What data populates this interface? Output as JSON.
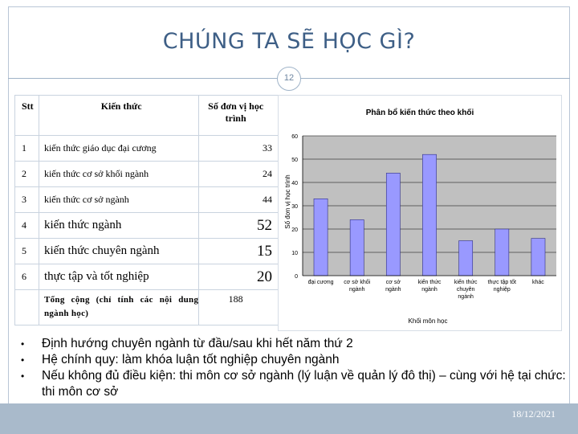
{
  "slide": {
    "title": "CHÚNG TA SẼ HỌC GÌ?",
    "number": "12",
    "date": "18/12/2021"
  },
  "table": {
    "headers": [
      "Stt",
      "Kiến thức",
      "Số đơn vị học trình"
    ],
    "rows": [
      {
        "stt": "1",
        "name": "kiến thức giáo dục đại cương",
        "units": "33"
      },
      {
        "stt": "2",
        "name": "kiến thức cơ sở khối ngành",
        "units": "24"
      },
      {
        "stt": "3",
        "name": "kiến thức cơ sở ngành",
        "units": "44"
      },
      {
        "stt": "4",
        "name": "kiến thức ngành",
        "units": "52"
      },
      {
        "stt": "5",
        "name": "kiến thức chuyên ngành",
        "units": "15"
      },
      {
        "stt": "6",
        "name": "thực tập và tốt nghiệp",
        "units": "20"
      }
    ],
    "total": {
      "label": "Tổng cộng (chỉ tính các nội dung ngành học)",
      "units": "188"
    }
  },
  "chart_data": {
    "type": "bar",
    "title": "Phân bổ kiến thức theo khối",
    "xlabel": "Khối môn học",
    "ylabel": "Số đơn vị học trình",
    "categories": [
      [
        "đại cương"
      ],
      [
        "cơ sở khối",
        "ngành"
      ],
      [
        "cơ sở",
        "ngành"
      ],
      [
        "kiến thức",
        "ngành"
      ],
      [
        "kiến thức",
        "chuyên",
        "ngành"
      ],
      [
        "thực tập tốt",
        "nghiệp"
      ],
      [
        "khác"
      ]
    ],
    "values": [
      33,
      24,
      44,
      52,
      15,
      20,
      16
    ],
    "ylim": [
      0,
      60
    ],
    "yticks": [
      0,
      10,
      20,
      30,
      40,
      50,
      60
    ],
    "grid": true,
    "colors": {
      "bar": "#9999ff",
      "bar_edge": "#303080",
      "plot_bg": "#c0c0c0",
      "gridline": "#000000"
    }
  },
  "bullets": [
    "Định hướng chuyên ngành từ đầu/sau khi hết năm thứ 2",
    "Hệ chính quy: làm khóa luận tốt nghiệp chuyên ngành",
    "Nếu không đủ điều kiện: thi môn cơ sở ngành (lý luận về quản lý đô thị) – cùng với hệ tại chức: thi môn cơ sở"
  ],
  "bullet_glyph": "•"
}
